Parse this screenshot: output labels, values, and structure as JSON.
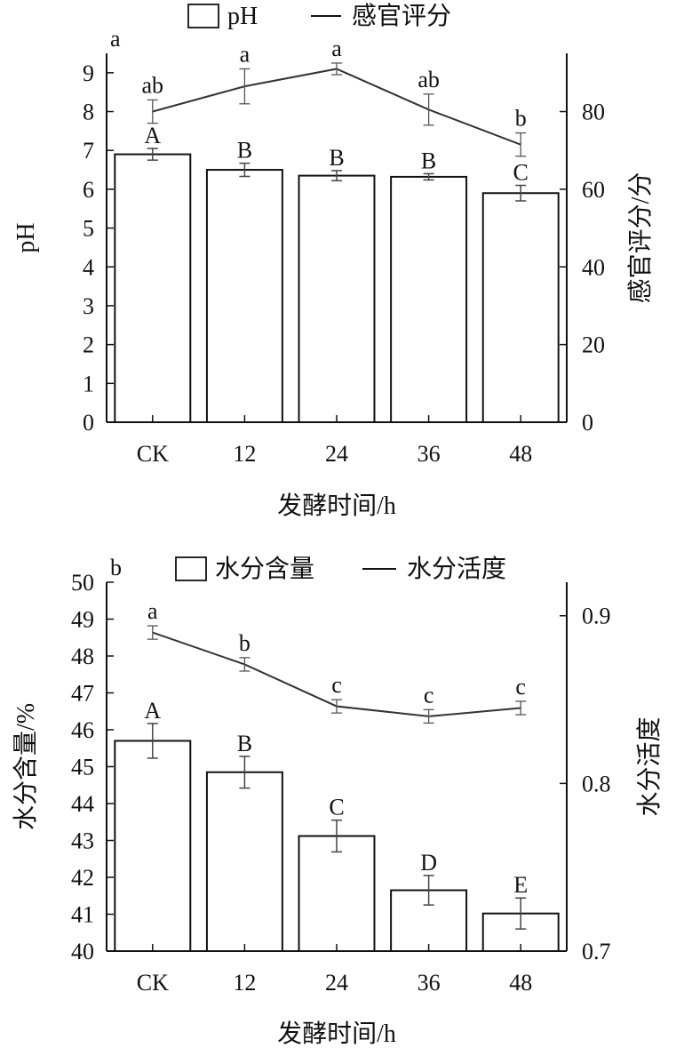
{
  "chart_data": [
    {
      "type": "bar",
      "panel_letter": "a",
      "categories": [
        "CK",
        "12",
        "24",
        "36",
        "48"
      ],
      "xlabel": "发酵时间/h",
      "ylabel": "pH",
      "ylim": [
        0,
        9.5
      ],
      "yticks": [
        0,
        1,
        2,
        3,
        4,
        5,
        6,
        7,
        8,
        9
      ],
      "y2label": "感官评分/分",
      "y2lim": [
        0,
        95
      ],
      "y2ticks": [
        0,
        20,
        40,
        60,
        80
      ],
      "legend": {
        "position": "top",
        "bar": "pH",
        "line": "感官评分"
      },
      "series": [
        {
          "name": "pH",
          "kind": "bar",
          "axis": "left",
          "values": [
            6.9,
            6.5,
            6.35,
            6.32,
            5.9
          ],
          "errors": [
            0.15,
            0.17,
            0.13,
            0.08,
            0.2
          ],
          "labels": [
            "A",
            "B",
            "B",
            "B",
            "C"
          ]
        },
        {
          "name": "感官评分",
          "kind": "line",
          "axis": "right",
          "values": [
            80,
            86.5,
            91,
            80.5,
            71.5
          ],
          "errors": [
            3,
            4.5,
            1.5,
            4,
            3
          ],
          "labels": [
            "ab",
            "a",
            "a",
            "ab",
            "b"
          ]
        }
      ]
    },
    {
      "type": "bar",
      "panel_letter": "b",
      "categories": [
        "CK",
        "12",
        "24",
        "36",
        "48"
      ],
      "xlabel": "发酵时间/h",
      "ylabel": "水分含量/%",
      "ylim": [
        40,
        50
      ],
      "yticks": [
        40,
        41,
        42,
        43,
        44,
        45,
        46,
        47,
        48,
        49,
        50
      ],
      "y2label": "水分活度",
      "y2lim": [
        0.7,
        0.92
      ],
      "y2ticks": [
        0.7,
        0.8,
        0.9
      ],
      "legend": {
        "position": "top",
        "bar": "水分含量",
        "line": "水分活度"
      },
      "series": [
        {
          "name": "水分含量",
          "kind": "bar",
          "axis": "left",
          "values": [
            45.7,
            44.85,
            43.12,
            41.65,
            41.02
          ],
          "errors": [
            0.47,
            0.43,
            0.43,
            0.4,
            0.42
          ],
          "labels": [
            "A",
            "B",
            "C",
            "D",
            "E"
          ]
        },
        {
          "name": "水分活度",
          "kind": "line",
          "axis": "right",
          "values": [
            0.89,
            0.871,
            0.846,
            0.84,
            0.845
          ],
          "errors": [
            0.004,
            0.004,
            0.004,
            0.004,
            0.004
          ],
          "labels": [
            "a",
            "b",
            "c",
            "c",
            "c"
          ]
        }
      ]
    }
  ]
}
